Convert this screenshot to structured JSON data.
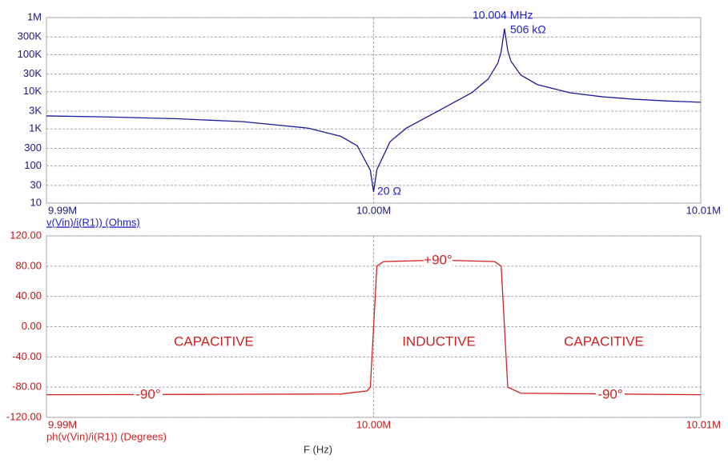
{
  "chart_data": [
    {
      "type": "line",
      "ylog": true,
      "grid": true,
      "color": "#1c1c96",
      "y_label": "v(Vin)/i(R1)) (Ohms)",
      "x": [
        9990000,
        9992000,
        9994000,
        9996000,
        9998000,
        9999000,
        9999500,
        9999900,
        10000000,
        10000100,
        10000500,
        10001000,
        10002000,
        10003000,
        10003500,
        10003800,
        10003900,
        10004000,
        10004100,
        10004200,
        10004500,
        10005000,
        10006000,
        10007000,
        10008000,
        10009000,
        10010000
      ],
      "values": [
        2240,
        2090,
        1880,
        1570,
        1050,
        630,
        350,
        77,
        20,
        80,
        450,
        1050,
        3140,
        9420,
        22000,
        59700,
        122000,
        506000,
        129000,
        66000,
        28300,
        15700,
        9420,
        7330,
        6280,
        5650,
        5230
      ],
      "xlim": [
        9990000,
        10010000
      ],
      "xticks": [
        {
          "value": 9990000,
          "label": "9.99M"
        },
        {
          "value": 10000000,
          "label": "10.00M"
        },
        {
          "value": 10010000,
          "label": "10.01M"
        }
      ],
      "ylim": [
        10,
        1000000
      ],
      "yticks": [
        {
          "value": 1000000,
          "label": "1M"
        },
        {
          "value": 300000,
          "label": "300K"
        },
        {
          "value": 100000,
          "label": "100K"
        },
        {
          "value": 30000,
          "label": "30K"
        },
        {
          "value": 10000,
          "label": "10K"
        },
        {
          "value": 3000,
          "label": "3K"
        },
        {
          "value": 1000,
          "label": "1K"
        },
        300,
        100,
        30,
        10
      ],
      "annotations": [
        "10.004 MHz",
        "506 kΩ",
        "20 Ω"
      ]
    },
    {
      "type": "line",
      "ylog": false,
      "grid": true,
      "color": "#d42020",
      "y_label": "ph(v(Vin)/i(R1)) (Degrees)",
      "x_label": "F (Hz)",
      "x": [
        9990000,
        9995000,
        9999000,
        9999800,
        9999900,
        10000000,
        10000100,
        10000300,
        10002000,
        10003700,
        10003900,
        10004000,
        10004100,
        10004500,
        10010000
      ],
      "values": [
        -90,
        -89.5,
        -89,
        -85,
        -80,
        0,
        80,
        86,
        88,
        86,
        80,
        0,
        -80,
        -88,
        -90
      ],
      "xlim": [
        9990000,
        10010000
      ],
      "xticks": [
        {
          "value": 9990000,
          "label": "9.99M"
        },
        {
          "value": 10000000,
          "label": "10.00M"
        },
        {
          "value": 10010000,
          "label": "10.01M"
        }
      ],
      "ylim": [
        -120,
        120
      ],
      "yticks": [
        {
          "value": 120,
          "label": "120.00"
        },
        {
          "value": 80,
          "label": "80.00"
        },
        {
          "value": 40,
          "label": "40.00"
        },
        {
          "value": 0,
          "label": "0.00"
        },
        {
          "value": -40,
          "label": "-40.00"
        },
        {
          "value": -80,
          "label": "-80.00"
        },
        {
          "value": -120,
          "label": "-120.00"
        }
      ],
      "annotations": [
        "+90°",
        "-90°",
        "-90°",
        "CAPACITIVE",
        "INDUCTIVE",
        "CAPACITIVE"
      ]
    }
  ]
}
